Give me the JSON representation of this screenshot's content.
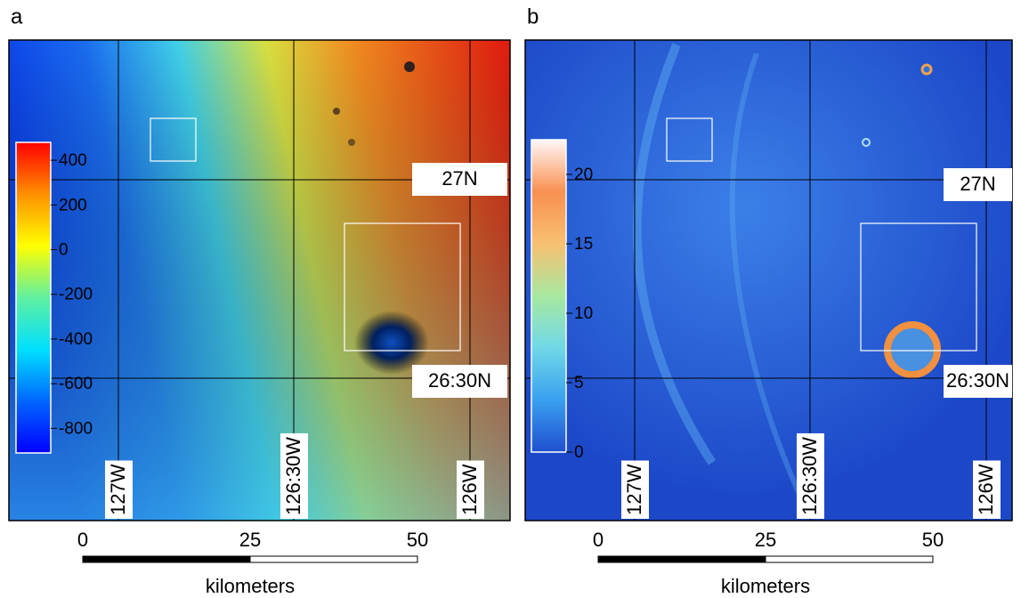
{
  "panels": [
    {
      "label": "a",
      "colorbar": {
        "range": [
          -910,
          480
        ],
        "ticks": [
          400,
          200,
          0,
          -200,
          -400,
          -600,
          -800
        ],
        "colormap": [
          "#0000ff",
          "#0066ff",
          "#00e0ff",
          "#60f0a0",
          "#ffff00",
          "#ff9000",
          "#ff0000"
        ]
      },
      "latitude_labels": [
        "27N",
        "26:30N"
      ],
      "longitude_labels": [
        "127W",
        "126:30W",
        "126W"
      ],
      "scale_bar": {
        "ticks": [
          0,
          25,
          50
        ],
        "unit": "kilometers"
      }
    },
    {
      "label": "b",
      "colorbar": {
        "range": [
          0,
          22.5
        ],
        "ticks": [
          20,
          15,
          10,
          5,
          0
        ],
        "colormap": [
          "#1f4fd0",
          "#3aa0f0",
          "#70d8e8",
          "#a8e8a0",
          "#f8c070",
          "#f89050",
          "#fff8f8"
        ]
      },
      "latitude_labels": [
        "27N",
        "26:30N"
      ],
      "longitude_labels": [
        "127W",
        "126:30W",
        "126W"
      ],
      "scale_bar": {
        "ticks": [
          0,
          25,
          50
        ],
        "unit": "kilometers"
      }
    }
  ]
}
